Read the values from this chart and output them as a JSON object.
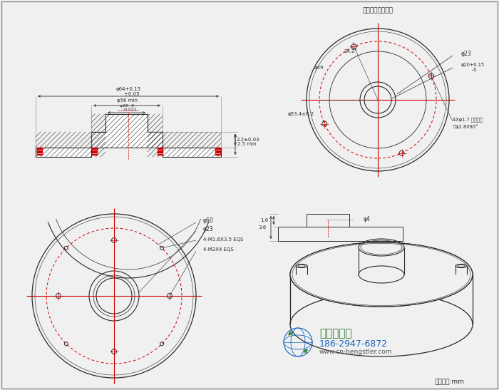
{
  "bg_color": "#f0f0f0",
  "line_color": "#2a2a2a",
  "red_color": "#cc0000",
  "green_color": "#2e7d32",
  "blue_color": "#1565c0",
  "title_top_right": "动盘轴向螺栓安装",
  "bottom_text1": "西安德伍拓",
  "bottom_text2": "186-2947-6872",
  "bottom_text3": "www.cn-hengstler.com",
  "unit_text": "尺寸单位:mm",
  "border_color": "#888888"
}
